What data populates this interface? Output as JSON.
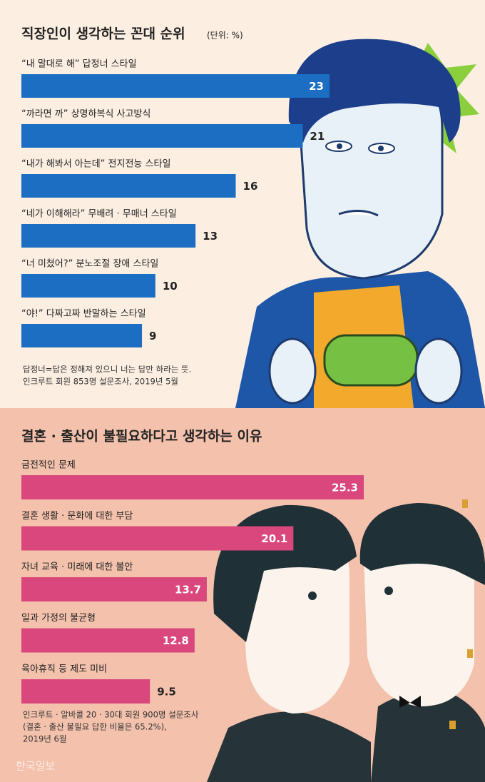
{
  "chart_data": [
    {
      "type": "bar",
      "orientation": "horizontal",
      "title": "직장인이 생각하는 꼰대 순위",
      "subtitle": "(단위: %)",
      "categories": [
        "“내 말대로 해” 답정너 스타일",
        "“까라면 까” 상명하복식 사고방식",
        "“내가 해봐서 아는데” 전지전능 스타일",
        "“네가 이해해라” 무배려 · 무매너 스타일",
        "“너 미쳤어?” 분노조절 장애 스타일",
        "“야!” 다짜고짜 반말하는 스타일"
      ],
      "values": [
        23,
        21,
        16,
        13,
        10,
        9
      ],
      "color": "#1b6ec2",
      "notes": [
        "답정너=답은 정해져 있으니 너는 답만 하라는 뜻.",
        "인크루트 회원 853명 설문조사, 2019년 5월"
      ]
    },
    {
      "type": "bar",
      "orientation": "horizontal",
      "title": "결혼 · 출산이 불필요하다고 생각하는 이유",
      "categories": [
        "금전적인 문제",
        "결혼 생활 · 문화에 대한 부담",
        "자녀 교육 · 미래에 대한 불안",
        "일과 가정의 불균형",
        "육아휴직 등 제도 미비"
      ],
      "values": [
        25.3,
        20.1,
        13.7,
        12.8,
        9.5
      ],
      "color": "#d9477c",
      "notes": [
        "인크루트 · 알바콜 20 · 30대 회원 900명 설문조사",
        "(결혼 · 출산 불필요 답한 비율은 65.2%),",
        "2019년 6월"
      ]
    }
  ],
  "watermark": "한국일보"
}
